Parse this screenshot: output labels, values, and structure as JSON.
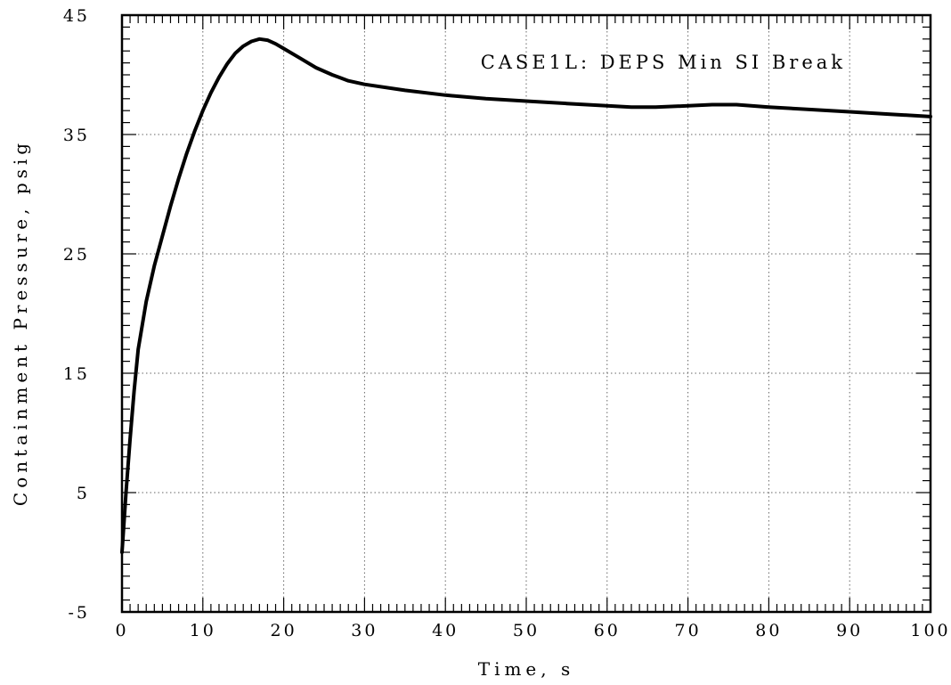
{
  "chart_data": {
    "type": "line",
    "title": "",
    "annotation": "CASE1L: DEPS Min SI Break",
    "xlabel": "Time, s",
    "ylabel": "Containment Pressure, psig",
    "xlim": [
      0,
      100
    ],
    "ylim": [
      -5,
      45
    ],
    "x_ticks": [
      0,
      10,
      20,
      30,
      40,
      50,
      60,
      70,
      80,
      90,
      100
    ],
    "y_ticks": [
      -5,
      5,
      15,
      25,
      35,
      45
    ],
    "x_tick_labels": [
      "0",
      "10",
      "20",
      "30",
      "40",
      "50",
      "60",
      "70",
      "80",
      "90",
      "100"
    ],
    "y_tick_labels": [
      "-5",
      "5",
      "15",
      "25",
      "35",
      "45"
    ],
    "grid": true,
    "legend": "none",
    "line_color": "#000000",
    "series": [
      {
        "x": [
          0,
          0.5,
          1,
          1.5,
          2,
          3,
          4,
          5,
          6,
          7,
          8,
          9,
          10,
          11,
          12,
          13,
          14,
          15,
          16,
          17,
          18,
          19,
          20,
          22,
          24,
          26,
          28,
          30,
          35,
          40,
          45,
          50,
          55,
          60,
          63,
          66,
          70,
          73,
          76,
          80,
          85,
          90,
          95,
          100
        ],
        "y": [
          0,
          5,
          9.5,
          13.5,
          17,
          21,
          24,
          26.5,
          29,
          31.3,
          33.4,
          35.3,
          37,
          38.5,
          39.8,
          40.9,
          41.8,
          42.4,
          42.8,
          43,
          42.9,
          42.6,
          42.2,
          41.4,
          40.6,
          40,
          39.5,
          39.2,
          38.7,
          38.3,
          38,
          37.8,
          37.6,
          37.4,
          37.3,
          37.3,
          37.4,
          37.5,
          37.5,
          37.3,
          37.1,
          36.9,
          36.7,
          36.5
        ]
      }
    ]
  }
}
